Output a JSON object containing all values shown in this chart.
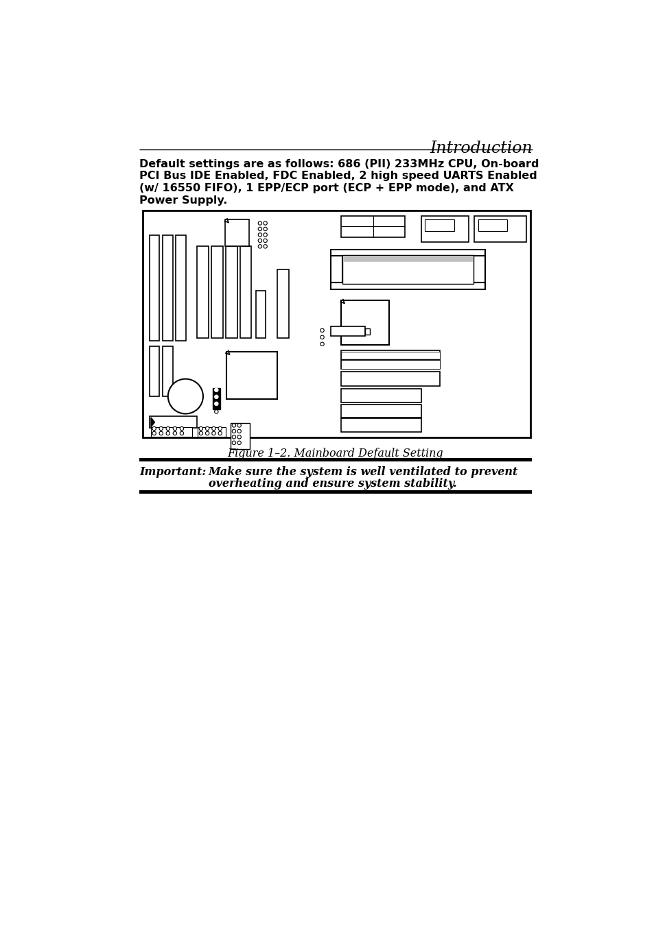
{
  "title": "Introduction",
  "body_line1": "Default settings are as follows: 686 (PII) 233MHz CPU, On-board",
  "body_line2": "PCI Bus IDE Enabled, FDC Enabled, 2 high speed UARTS Enabled",
  "body_line3": "(w/ 16550 FIFO), 1 EPP/ECP port (ECP + EPP mode), and ATX",
  "body_line4": "Power Supply.",
  "figure_caption": "Figure 1–2. Mainboard Default Setting",
  "important_label": "Important:",
  "important_text1": "Make sure the system is well ventilated to prevent",
  "important_text2": "overheating and ensure system stability.",
  "bg_color": "#ffffff",
  "text_color": "#000000"
}
